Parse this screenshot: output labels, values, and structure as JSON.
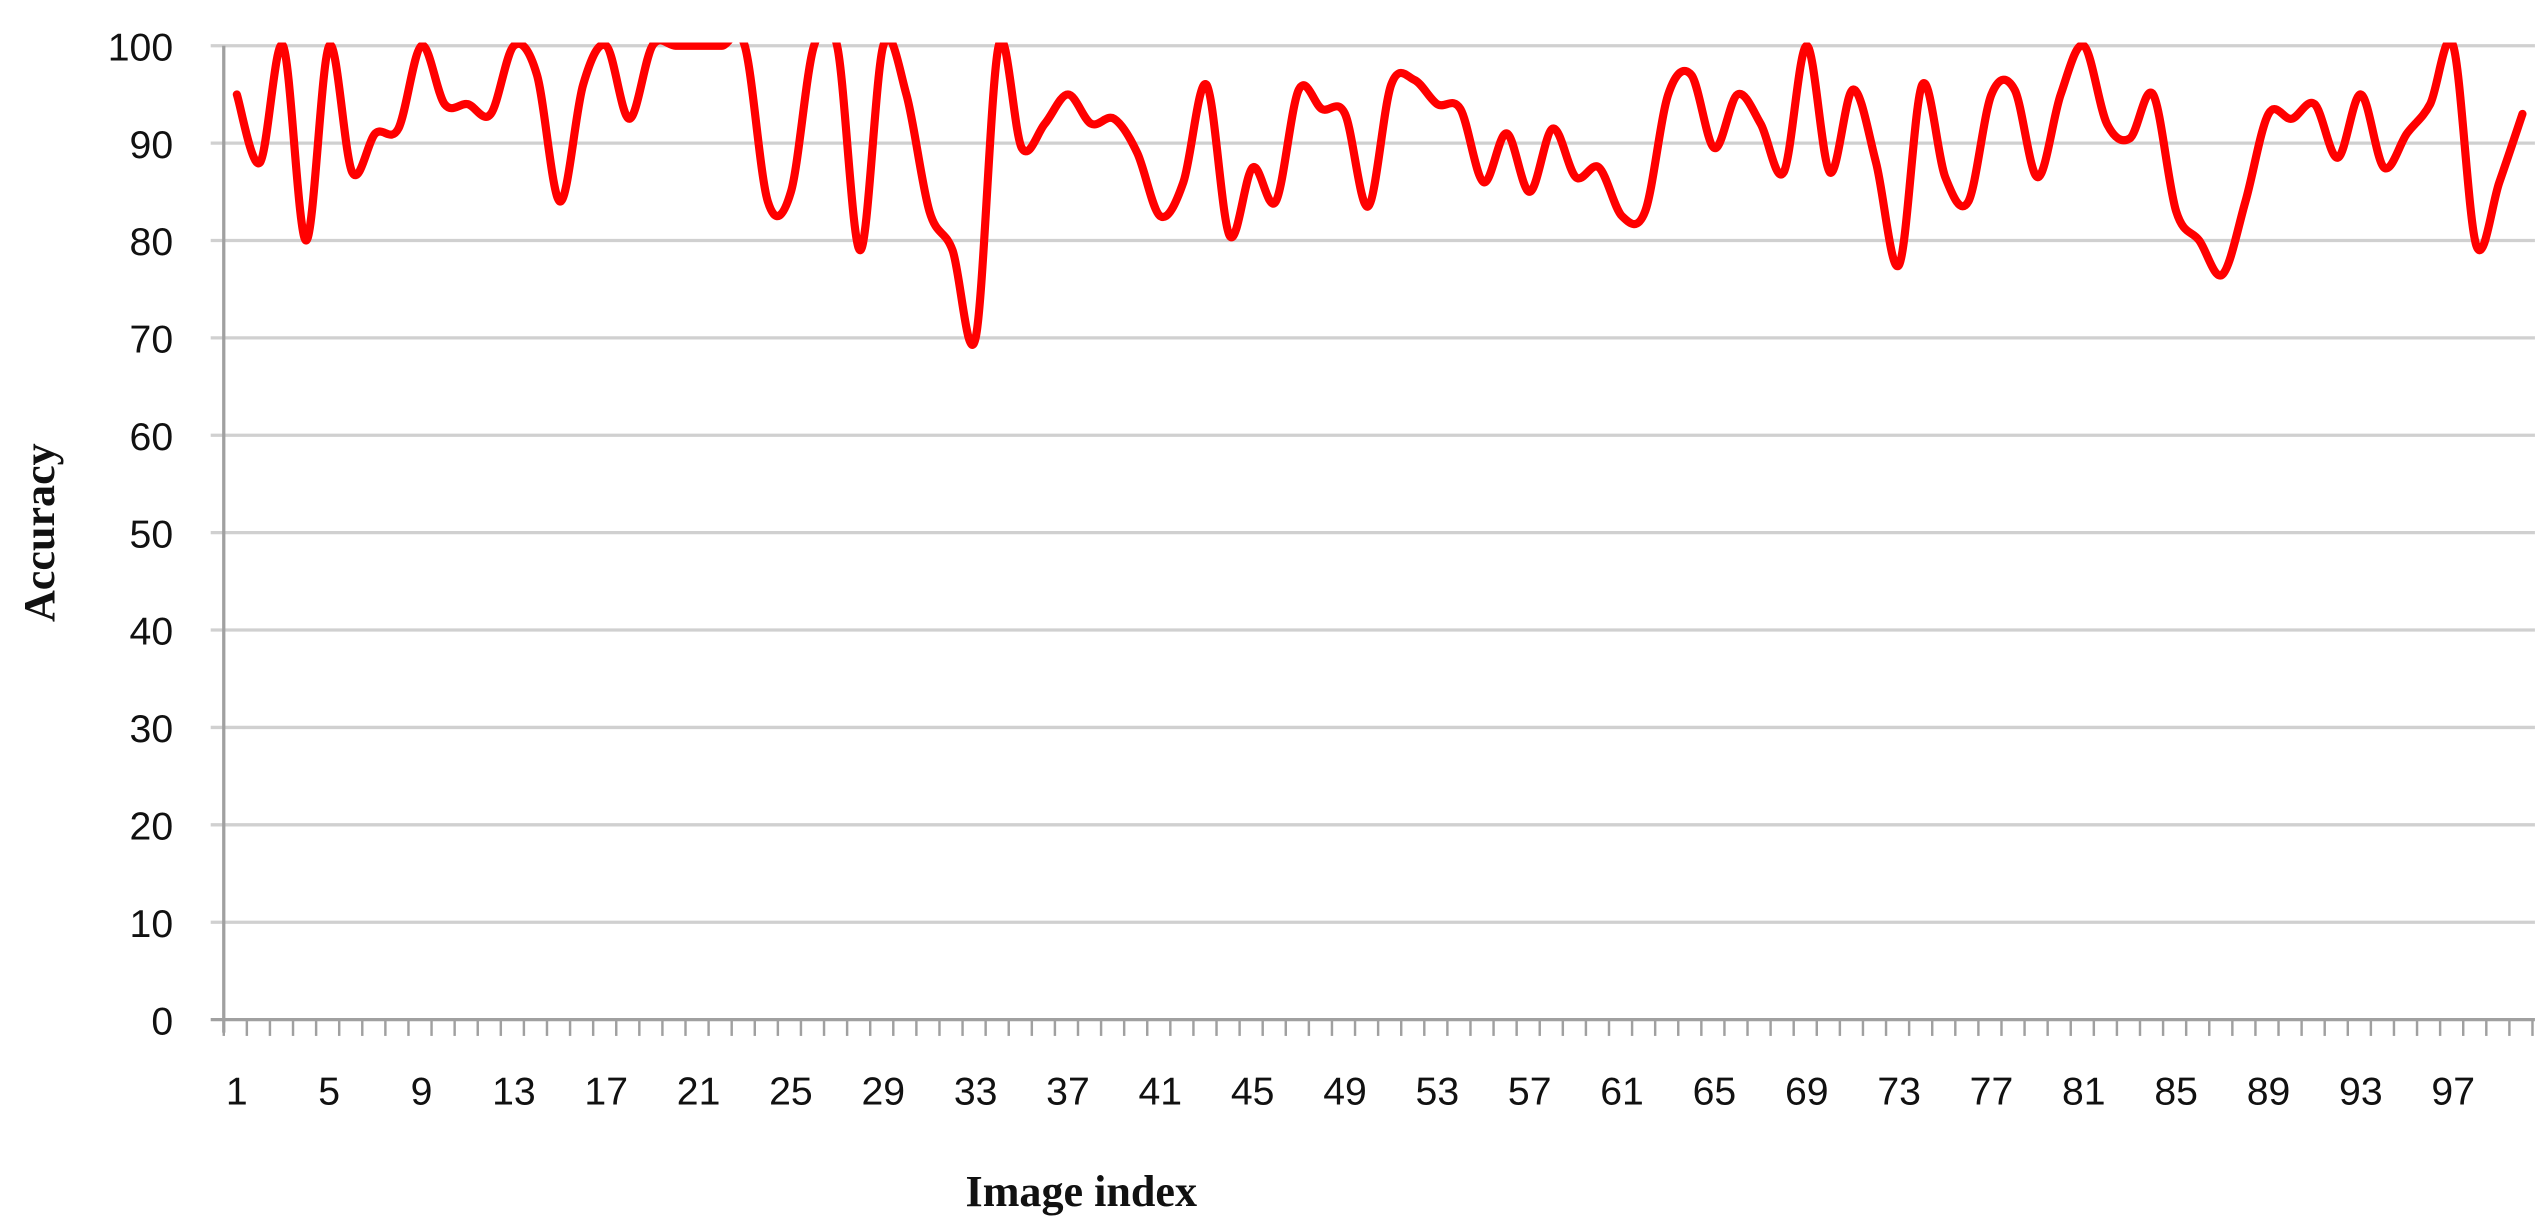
{
  "chart_data": {
    "type": "line",
    "title": "",
    "xlabel": "Image index",
    "ylabel": "Accuracy",
    "ylim": [
      0,
      100
    ],
    "y_ticks": [
      0,
      10,
      20,
      30,
      40,
      50,
      60,
      70,
      80,
      90,
      100
    ],
    "x_tick_labels": [
      1,
      5,
      9,
      13,
      17,
      21,
      25,
      29,
      33,
      37,
      41,
      45,
      49,
      53,
      57,
      61,
      65,
      69,
      73,
      77,
      81,
      85,
      89,
      93,
      97
    ],
    "grid": "horizontal",
    "smoothed": true,
    "line_color": "#ff0000",
    "grid_color": "#d0d0d0",
    "x": [
      1,
      2,
      3,
      4,
      5,
      6,
      7,
      8,
      9,
      10,
      11,
      12,
      13,
      14,
      15,
      16,
      17,
      18,
      19,
      20,
      21,
      22,
      23,
      24,
      25,
      26,
      27,
      28,
      29,
      30,
      31,
      32,
      33,
      34,
      35,
      36,
      37,
      38,
      39,
      40,
      41,
      42,
      43,
      44,
      45,
      46,
      47,
      48,
      49,
      50,
      51,
      52,
      53,
      54,
      55,
      56,
      57,
      58,
      59,
      60,
      61,
      62,
      63,
      64,
      65,
      66,
      67,
      68,
      69,
      70,
      71,
      72,
      73,
      74,
      75,
      76,
      77,
      78,
      79,
      80,
      81,
      82,
      83,
      84,
      85,
      86,
      87,
      88,
      89,
      90,
      91,
      92,
      93,
      94,
      95,
      96,
      97,
      98,
      99,
      100
    ],
    "values": [
      95,
      88,
      100,
      80,
      100,
      87,
      91,
      91.5,
      100,
      94,
      94,
      93,
      100,
      97,
      84,
      96,
      100,
      92.5,
      100,
      100,
      100,
      100,
      100,
      84,
      85,
      100,
      100,
      79,
      100,
      95,
      83,
      79,
      70,
      100,
      89.5,
      92,
      95,
      92,
      92.5,
      89,
      82.5,
      86,
      96,
      80.5,
      87.5,
      84,
      95.5,
      93.5,
      93,
      83.5,
      96,
      96.5,
      94,
      93.5,
      86,
      91,
      85,
      91.5,
      86.5,
      87.5,
      82.5,
      83,
      95,
      97,
      89.5,
      95,
      92,
      87,
      100,
      87,
      95.5,
      88,
      77.5,
      96,
      86.5,
      84,
      95,
      95.5,
      86.5,
      95,
      100,
      92,
      90.5,
      95,
      83,
      80,
      76.5,
      84,
      93,
      92.5,
      94,
      88.5,
      95,
      87.5,
      91,
      94,
      100,
      79.5,
      86,
      93
    ]
  }
}
